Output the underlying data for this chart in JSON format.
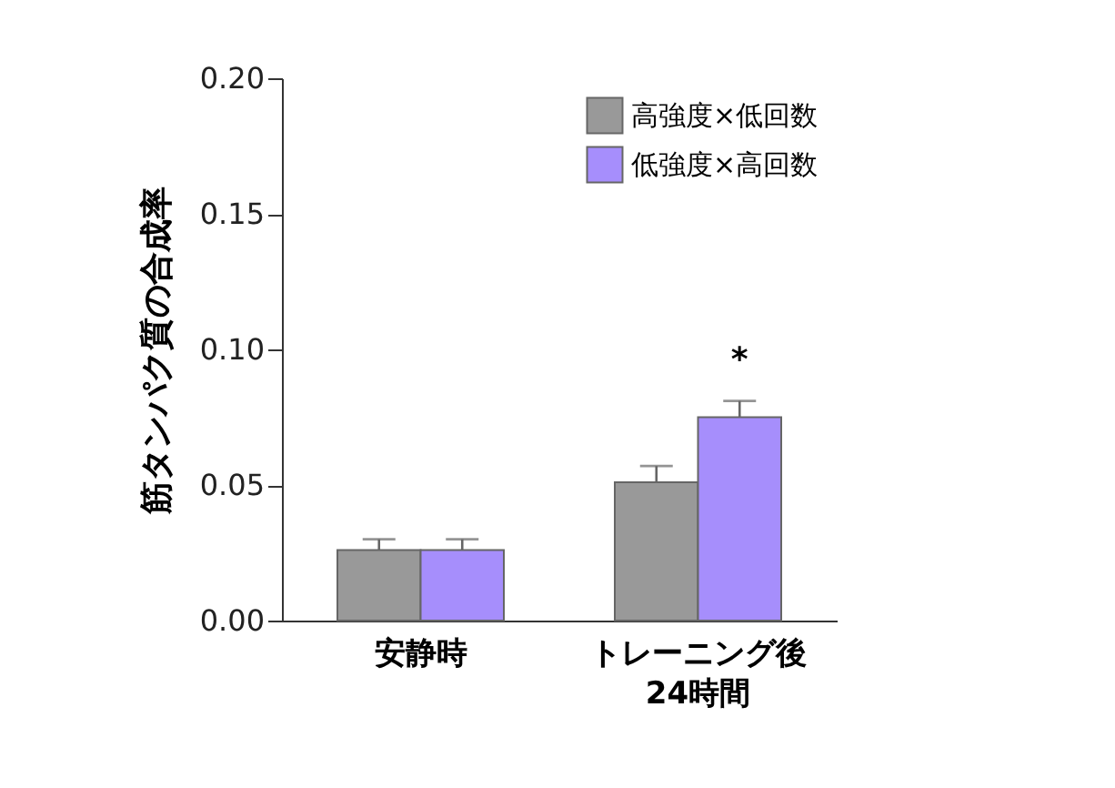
{
  "chart_data": {
    "type": "bar",
    "ylabel": "筋タンパク質の合成率",
    "categories": [
      "安静時",
      "トレーニング後\n24時間"
    ],
    "series": [
      {
        "name": "高強度×低回数",
        "color": "#999999",
        "values": [
          0.026,
          0.051
        ],
        "errors": [
          [
            0.026,
            0.03
          ],
          [
            0.051,
            0.057
          ]
        ]
      },
      {
        "name": "低強度×高回数",
        "color": "#a68efc",
        "values": [
          0.026,
          0.075
        ],
        "errors": [
          [
            0.026,
            0.03
          ],
          [
            0.075,
            0.081
          ]
        ]
      }
    ],
    "ylim": [
      0,
      0.2
    ],
    "yticks": [
      {
        "value": 0,
        "label": "0.00"
      },
      {
        "value": 0.05,
        "label": "0.05"
      },
      {
        "value": 0.1,
        "label": "0.10"
      },
      {
        "value": 0.15,
        "label": "0.15"
      },
      {
        "value": 0.2,
        "label": "0.20"
      }
    ],
    "annotations": [
      "*"
    ],
    "grid": false,
    "legend": "top right"
  }
}
